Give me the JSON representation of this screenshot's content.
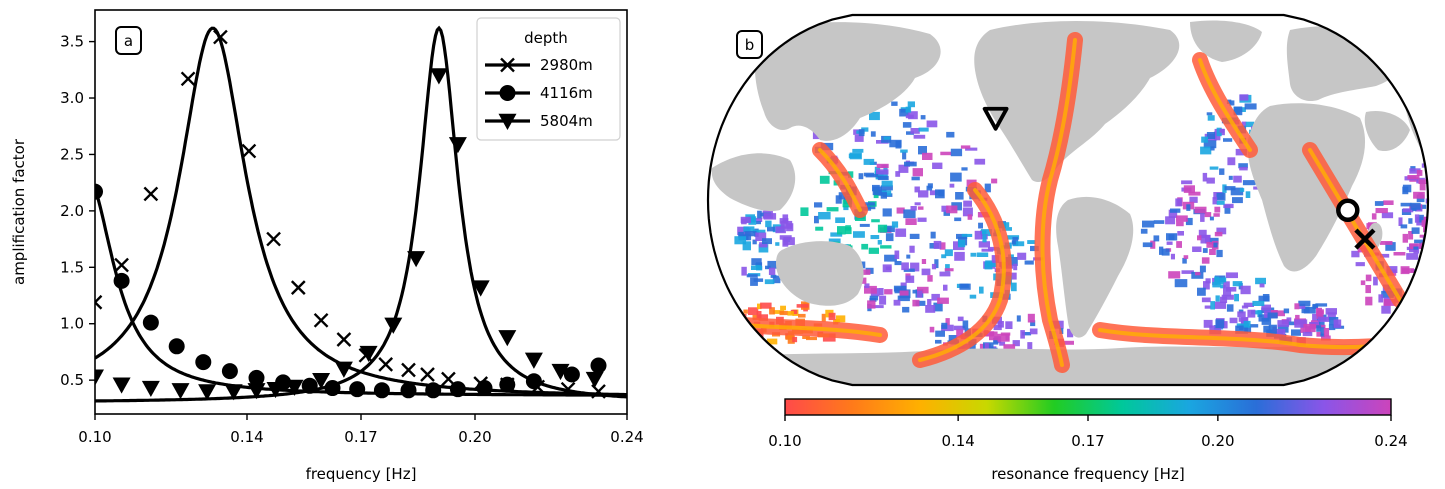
{
  "chart_data": [
    {
      "type": "line",
      "panel_label": "a",
      "xlabel": "frequency [Hz]",
      "ylabel": "amplification factor",
      "xlim": [
        0.1,
        0.24
      ],
      "ylim": [
        0.2,
        3.78
      ],
      "xticks": [
        "0.10",
        "0.14",
        "0.17",
        "0.20",
        "0.24"
      ],
      "xtick_values": [
        0.1,
        0.14,
        0.17,
        0.2,
        0.24
      ],
      "yticks": [
        "0.5",
        "1.0",
        "1.5",
        "2.0",
        "2.5",
        "3.0",
        "3.5"
      ],
      "ytick_values": [
        0.5,
        1.0,
        1.5,
        2.0,
        2.5,
        3.0,
        3.5
      ],
      "legend": {
        "title": "depth",
        "placement": "top-right"
      },
      "grid": false,
      "series": [
        {
          "name": "2980m",
          "marker": "x",
          "curve": {
            "peak_x": 0.131,
            "peak_y": 3.62,
            "base": 0.34,
            "width": 0.0108
          },
          "points": [
            [
              0.1,
              1.19
            ],
            [
              0.107,
              1.52
            ],
            [
              0.1147,
              2.15
            ],
            [
              0.1245,
              3.17
            ],
            [
              0.133,
              3.54
            ],
            [
              0.1405,
              2.53
            ],
            [
              0.147,
              1.75
            ],
            [
              0.1535,
              1.32
            ],
            [
              0.1595,
              1.03
            ],
            [
              0.1655,
              0.86
            ],
            [
              0.1713,
              0.72
            ],
            [
              0.1765,
              0.64
            ],
            [
              0.1825,
              0.59
            ],
            [
              0.1875,
              0.55
            ],
            [
              0.193,
              0.51
            ],
            [
              0.2015,
              0.47
            ],
            [
              0.2085,
              0.46
            ],
            [
              0.2165,
              0.44
            ],
            [
              0.2245,
              0.42
            ],
            [
              0.2325,
              0.4
            ]
          ]
        },
        {
          "name": "4116m",
          "marker": "o",
          "curve": {
            "peak_x": 0.098,
            "peak_y": 2.3,
            "base": 0.36,
            "width": 0.0085
          },
          "points": [
            [
              0.1,
              2.17
            ],
            [
              0.107,
              1.38
            ],
            [
              0.1147,
              1.01
            ],
            [
              0.1215,
              0.8
            ],
            [
              0.1285,
              0.66
            ],
            [
              0.1355,
              0.58
            ],
            [
              0.1425,
              0.52
            ],
            [
              0.1495,
              0.48
            ],
            [
              0.1565,
              0.45
            ],
            [
              0.1625,
              0.43
            ],
            [
              0.169,
              0.42
            ],
            [
              0.1755,
              0.41
            ],
            [
              0.1825,
              0.41
            ],
            [
              0.189,
              0.41
            ],
            [
              0.1955,
              0.42
            ],
            [
              0.2025,
              0.43
            ],
            [
              0.2085,
              0.46
            ],
            [
              0.2155,
              0.49
            ],
            [
              0.2255,
              0.55
            ],
            [
              0.2325,
              0.63
            ]
          ]
        },
        {
          "name": "5804m",
          "marker": "v",
          "curve": {
            "peak_x": 0.1905,
            "peak_y": 3.62,
            "base": 0.3,
            "width": 0.0062
          },
          "points": [
            [
              0.1,
              0.53
            ],
            [
              0.107,
              0.46
            ],
            [
              0.1147,
              0.43
            ],
            [
              0.1225,
              0.41
            ],
            [
              0.1295,
              0.4
            ],
            [
              0.1365,
              0.4
            ],
            [
              0.1425,
              0.41
            ],
            [
              0.1475,
              0.42
            ],
            [
              0.1525,
              0.44
            ],
            [
              0.1595,
              0.5
            ],
            [
              0.1655,
              0.6
            ],
            [
              0.172,
              0.74
            ],
            [
              0.1785,
              0.99
            ],
            [
              0.1845,
              1.58
            ],
            [
              0.1905,
              3.2
            ],
            [
              0.1955,
              2.59
            ],
            [
              0.2015,
              1.32
            ],
            [
              0.2085,
              0.88
            ],
            [
              0.2155,
              0.68
            ],
            [
              0.2225,
              0.58
            ],
            [
              0.2315,
              0.51
            ]
          ]
        }
      ]
    },
    {
      "type": "heatmap",
      "panel_label": "b",
      "projection": "Robinson (Pacific-centered)",
      "land_color": "#c6c6c6",
      "markers": [
        {
          "name": "2980m",
          "marker": "x",
          "lon": -30,
          "lat": -19
        },
        {
          "name": "4116m",
          "marker": "o",
          "lon": -40,
          "lat": -5
        },
        {
          "name": "5804m",
          "marker": "v",
          "lon": 142,
          "lat": 40
        }
      ],
      "colorbar": {
        "label": "resonance frequency [Hz]",
        "range": [
          0.1,
          0.24
        ],
        "ticks": [
          "0.10",
          "0.14",
          "0.17",
          "0.20",
          "0.24"
        ],
        "tick_values": [
          0.1,
          0.14,
          0.17,
          0.2,
          0.24
        ],
        "colors": [
          "#ff4a4a",
          "#ff7a1a",
          "#ffb000",
          "#c8d800",
          "#22cc22",
          "#00c89a",
          "#1aa6e0",
          "#2a6ed8",
          "#8a55e8",
          "#cc44bb"
        ]
      }
    }
  ]
}
